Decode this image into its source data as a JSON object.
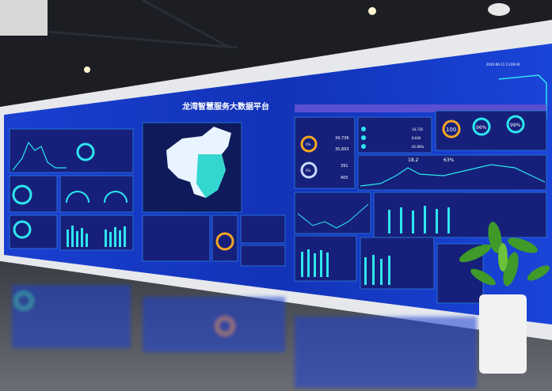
{
  "screen": {
    "title": "龙湾智慧服务大数据平台",
    "timestamp": "2020-06-11 13:09:40",
    "colors": {
      "screen_bg": "#1230b8",
      "panel_bg": "#14227a",
      "accent_cyan": "#2ee6f0",
      "accent_orange": "#f5a623",
      "accent_magenta": "#ff3c8e",
      "accent_green": "#3cf07a"
    },
    "stats": {
      "value_a": "34,736",
      "value_b": "35,693",
      "value_c": "391",
      "value_d": "405",
      "ring_a": "0%",
      "ring_b": "0%",
      "list_values": [
        "34,736",
        "8,640",
        "65.89%"
      ],
      "score_ring": "100",
      "ring_96": "96%",
      "ring_99": "99%",
      "highlight_value": "18.2",
      "highlight_percent": "63%"
    }
  }
}
